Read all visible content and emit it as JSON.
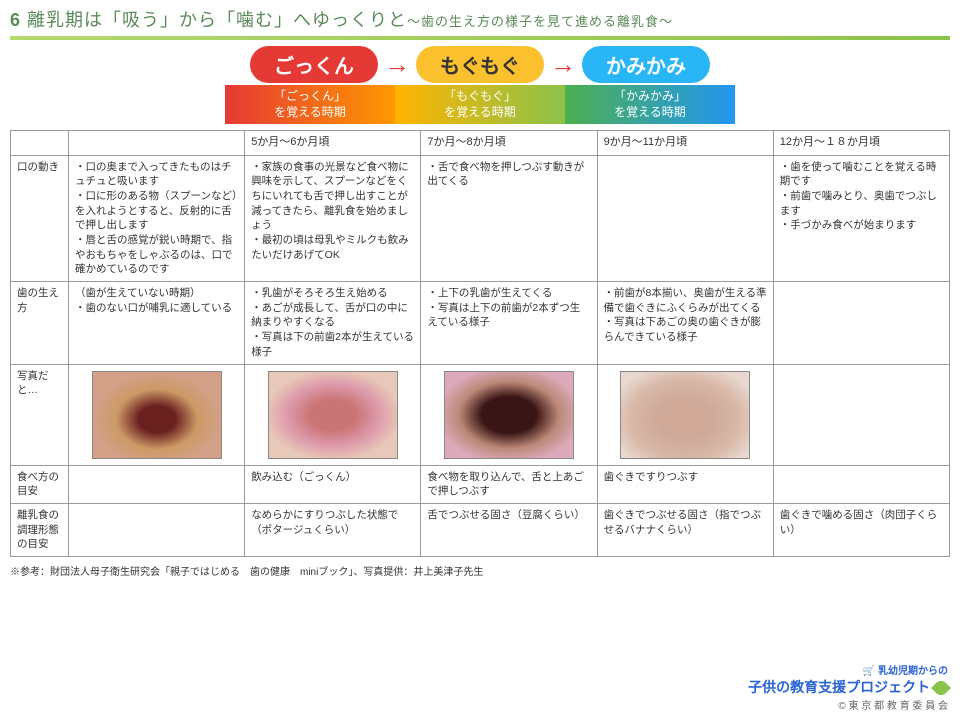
{
  "header": {
    "number": "6",
    "title": "離乳期は「吸う」から「噛む」へゆっくりと",
    "subtitle": "〜歯の生え方の様子を見て進める離乳食〜"
  },
  "stages": {
    "pills": [
      "ごっくん",
      "もぐもぐ",
      "かみかみ"
    ],
    "pill_colors": [
      "#e53935",
      "#fbc02d",
      "#29b6f6"
    ],
    "arrow": "→",
    "bars": [
      "「ごっくん」\nを覚える時期",
      "「もぐもぐ」\nを覚える時期",
      "「かみかみ」\nを覚える時期"
    ]
  },
  "table": {
    "row_headers": [
      "",
      "口の動き",
      "歯の生え方",
      "写真だと…",
      "食べ方の目安",
      "離乳食の調理形態の目安"
    ],
    "ages": [
      "",
      "5か月〜6か月頃",
      "7か月〜8か月頃",
      "9か月〜11か月頃",
      "12か月〜１８か月頃"
    ],
    "mouth": [
      "・口の奥まで入ってきたものはチュチュと吸います\n・口に形のある物（スプーンなど）を入れようとすると、反射的に舌で押し出します\n・唇と舌の感覚が鋭い時期で、指やおもちゃをしゃぶるのは、口で確かめているのです",
      "・家族の食事の光景など食べ物に興味を示して、スプーンなどをくちにいれても舌で押し出すことが減ってきたら、離乳食を始めましょう\n・最初の頃は母乳やミルクも飲みたいだけあげてOK",
      "・舌で食べ物を押しつぶす動きが出てくる",
      "",
      "・歯を使って噛むことを覚える時期です\n・前歯で噛みとり、奥歯でつぶします\n・手づかみ食べが始まります"
    ],
    "teeth": [
      "（歯が生えていない時期）\n・歯のない口が哺乳に適している",
      "・乳歯がそろそろ生え始める\n・あごが成長して、舌が口の中に納まりやすくなる\n・写真は下の前歯2本が生えている様子",
      "・上下の乳歯が生えてくる\n・写真は上下の前歯が2本ずつ生えている様子",
      "・前歯が8本揃い、奥歯が生える準備で歯ぐきにふくらみが出てくる\n・写真は下あごの奥の歯ぐきが膨らんできている様子",
      ""
    ],
    "eating": [
      "",
      "飲み込む（ごっくん）",
      "食べ物を取り込んで、舌と上あごで押しつぶす",
      "歯ぐきですりつぶす",
      ""
    ],
    "cooking": [
      "",
      "なめらかにすりつぶした状態で（ポタージュくらい）",
      "舌でつぶせる固さ（豆腐くらい）",
      "歯ぐきでつぶせる固さ（指でつぶせるバナナくらい）",
      "歯ぐきで噛める固さ（肉団子くらい）"
    ]
  },
  "footnote": "※参考：財団法人母子衛生研究会「親子ではじめる　歯の健康　miniブック」、写真提供：井上美津子先生",
  "footer": {
    "line1": "乳幼児期からの",
    "line2": "子供の教育支援プロジェクト",
    "line3": "© 東 京 都 教 育 委 員 会"
  }
}
